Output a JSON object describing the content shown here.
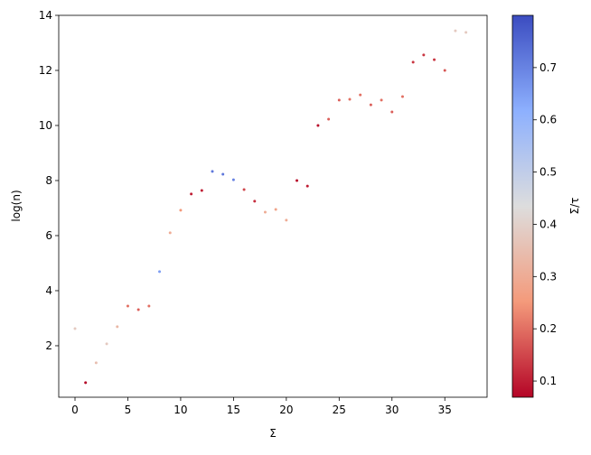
{
  "chart_data": {
    "type": "scatter",
    "xlabel": "Σ",
    "ylabel": "log(n)",
    "colorbar_label": "Σ/τ",
    "x": [
      0,
      1,
      2,
      3,
      4,
      5,
      6,
      7,
      8,
      9,
      10,
      11,
      12,
      13,
      14,
      15,
      16,
      17,
      18,
      19,
      20,
      21,
      22,
      23,
      24,
      25,
      26,
      27,
      28,
      29,
      30,
      31,
      32,
      33,
      34,
      35,
      36,
      37
    ],
    "y": [
      2.62,
      0.66,
      1.38,
      2.07,
      2.69,
      3.44,
      3.31,
      3.44,
      4.69,
      6.1,
      6.92,
      7.51,
      7.64,
      8.33,
      8.23,
      8.03,
      7.67,
      7.25,
      6.85,
      6.95,
      6.56,
      8.0,
      7.8,
      10.0,
      10.23,
      10.92,
      10.95,
      11.11,
      10.75,
      10.92,
      10.49,
      11.05,
      12.3,
      12.56,
      12.39,
      12.0,
      13.44,
      13.38
    ],
    "color_values": [
      0.38,
      0.07,
      0.35,
      0.38,
      0.33,
      0.2,
      0.18,
      0.2,
      0.65,
      0.3,
      0.25,
      0.1,
      0.1,
      0.72,
      0.72,
      0.7,
      0.15,
      0.12,
      0.3,
      0.28,
      0.3,
      0.08,
      0.1,
      0.08,
      0.18,
      0.18,
      0.2,
      0.2,
      0.18,
      0.2,
      0.18,
      0.2,
      0.13,
      0.13,
      0.13,
      0.17,
      0.38,
      0.38
    ],
    "colormap": [
      "#b40426",
      "#f49a7b",
      "#dddddd",
      "#8db0fe",
      "#3b4cc0"
    ],
    "xlim": [
      -1.54,
      39.0
    ],
    "ylim": [
      0.13,
      14.0
    ],
    "clim": [
      0.069,
      0.8
    ],
    "xticks": [
      0,
      5,
      10,
      15,
      20,
      25,
      30,
      35
    ],
    "yticks": [
      2,
      4,
      6,
      8,
      10,
      12,
      14
    ],
    "cticks": [
      0.1,
      0.2,
      0.3,
      0.4,
      0.5,
      0.6,
      0.7
    ]
  }
}
